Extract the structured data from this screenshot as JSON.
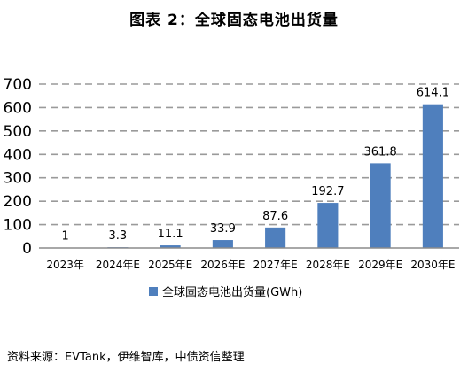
{
  "title": "图表 2：全球固态电池出货量",
  "source": "资料来源：EVTank，伊维智库，中债资信整理",
  "chart_data": {
    "type": "bar",
    "categories": [
      "2023年",
      "2024年E",
      "2025年E",
      "2026年E",
      "2027年E",
      "2028年E",
      "2029年E",
      "2030年E"
    ],
    "series": [
      {
        "name": "全球固态电池出货量(GWh)",
        "values": [
          1,
          3.3,
          11.1,
          33.9,
          87.6,
          192.7,
          361.8,
          614.1
        ],
        "labels": [
          "1",
          "3.3",
          "11.1",
          "33.9",
          "87.6",
          "192.7",
          "361.8",
          "614.1"
        ]
      }
    ],
    "yticks": [
      0,
      100,
      200,
      300,
      400,
      500,
      600,
      700
    ],
    "ylim": [
      0,
      700
    ],
    "grid": "horizontal-dashed",
    "legend": "bottom",
    "colors": {
      "bar": "#4f7fbd",
      "grid": "#9a9a9a",
      "axis": "#8c8c8c"
    }
  }
}
